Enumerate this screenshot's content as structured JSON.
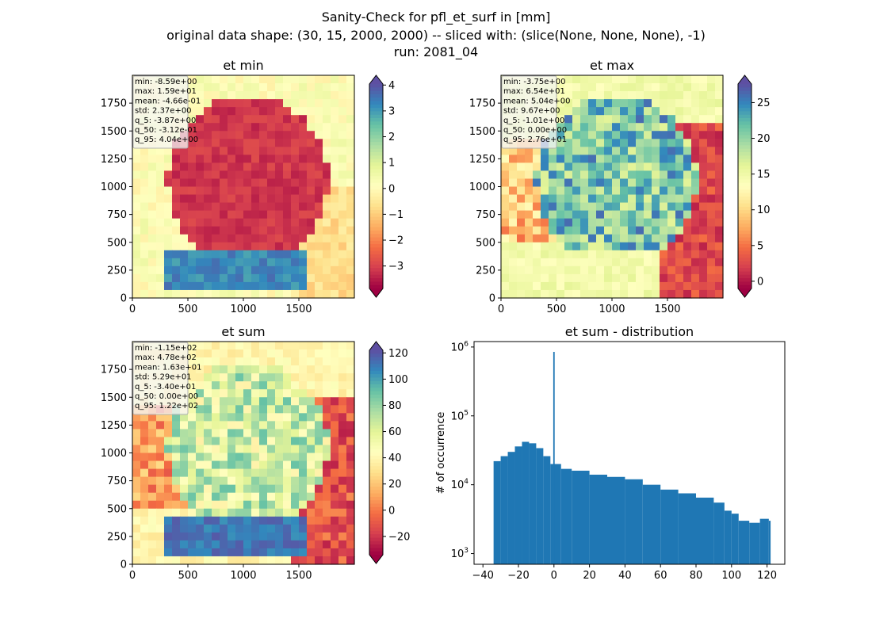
{
  "figure": {
    "suptitle_lines": [
      "Sanity-Check for pfl_et_surf in [mm]",
      "original data shape: (30, 15, 2000, 2000) -- sliced with: (slice(None, None, None), -1)",
      "run: 2081_04"
    ]
  },
  "chart_data": [
    {
      "type": "heatmap",
      "title": "et min",
      "x_ticks": [
        0,
        500,
        1000,
        1500
      ],
      "y_ticks": [
        0,
        250,
        500,
        750,
        1000,
        1250,
        1500,
        1750
      ],
      "xlim": [
        0,
        2000
      ],
      "ylim": [
        0,
        2000
      ],
      "colormap": "Spectral",
      "colorbar": {
        "ticks": [
          -3,
          -2,
          -1,
          0,
          1,
          2,
          3,
          4
        ],
        "range": [
          -3.87,
          4.04
        ],
        "extend": "both"
      },
      "stats": {
        "min": "-8.59e+00",
        "max": "1.59e+01",
        "mean": "-4.66e-01",
        "std": "2.37e+00",
        "q_5": "-3.87e+00",
        "q_50": "-3.12e-01",
        "q_95": "4.04e+00"
      }
    },
    {
      "type": "heatmap",
      "title": "et max",
      "x_ticks": [
        0,
        500,
        1000,
        1500
      ],
      "y_ticks": [
        0,
        250,
        500,
        750,
        1000,
        1250,
        1500,
        1750
      ],
      "xlim": [
        0,
        2000
      ],
      "ylim": [
        0,
        2000
      ],
      "colormap": "Spectral",
      "colorbar": {
        "ticks": [
          0,
          5,
          10,
          15,
          20,
          25
        ],
        "range": [
          -1.01,
          27.6
        ],
        "extend": "both"
      },
      "stats": {
        "min": "-3.75e+00",
        "max": "6.54e+01",
        "mean": "5.04e+00",
        "std": "9.67e+00",
        "q_5": "-1.01e+00",
        "q_50": "0.00e+00",
        "q_95": "2.76e+01"
      }
    },
    {
      "type": "heatmap",
      "title": "et sum",
      "x_ticks": [
        0,
        500,
        1000,
        1500
      ],
      "y_ticks": [
        0,
        250,
        500,
        750,
        1000,
        1250,
        1500,
        1750
      ],
      "xlim": [
        0,
        2000
      ],
      "ylim": [
        0,
        2000
      ],
      "colormap": "Spectral",
      "colorbar": {
        "ticks": [
          -20,
          0,
          20,
          40,
          60,
          80,
          100,
          120
        ],
        "range": [
          -34.0,
          122
        ],
        "extend": "both"
      },
      "stats": {
        "min": "-1.15e+02",
        "max": "4.78e+02",
        "mean": "1.63e+01",
        "std": "5.29e+01",
        "q_5": "-3.40e+01",
        "q_50": "0.00e+00",
        "q_95": "1.22e+02"
      }
    },
    {
      "type": "bar",
      "title": "et sum - distribution",
      "xlabel": "",
      "ylabel": "# of occurrence",
      "yscale": "log",
      "xlim": [
        -45,
        130
      ],
      "ylim": [
        700,
        1200000
      ],
      "x_ticks": [
        -40,
        -20,
        0,
        20,
        40,
        60,
        80,
        100,
        120
      ],
      "y_ticks": [
        1000,
        10000,
        100000,
        1000000
      ],
      "y_tick_labels": [
        {
          "base": "10",
          "exp": "3"
        },
        {
          "base": "10",
          "exp": "4"
        },
        {
          "base": "10",
          "exp": "5"
        },
        {
          "base": "10",
          "exp": "6"
        }
      ],
      "bar_color": "#1f77b4",
      "x": [
        -34,
        -30,
        -26,
        -22,
        -18,
        -14,
        -10,
        -6,
        -2,
        0,
        4,
        10,
        20,
        30,
        40,
        50,
        60,
        70,
        80,
        90,
        96,
        100,
        104,
        110,
        116,
        121
      ],
      "values": [
        22000,
        26000,
        30000,
        36000,
        42000,
        40000,
        34000,
        26000,
        20000,
        850000,
        17000,
        16000,
        14000,
        13000,
        12000,
        10000,
        8500,
        7500,
        6500,
        5500,
        4200,
        3800,
        3000,
        2800,
        3200,
        3000
      ]
    }
  ]
}
